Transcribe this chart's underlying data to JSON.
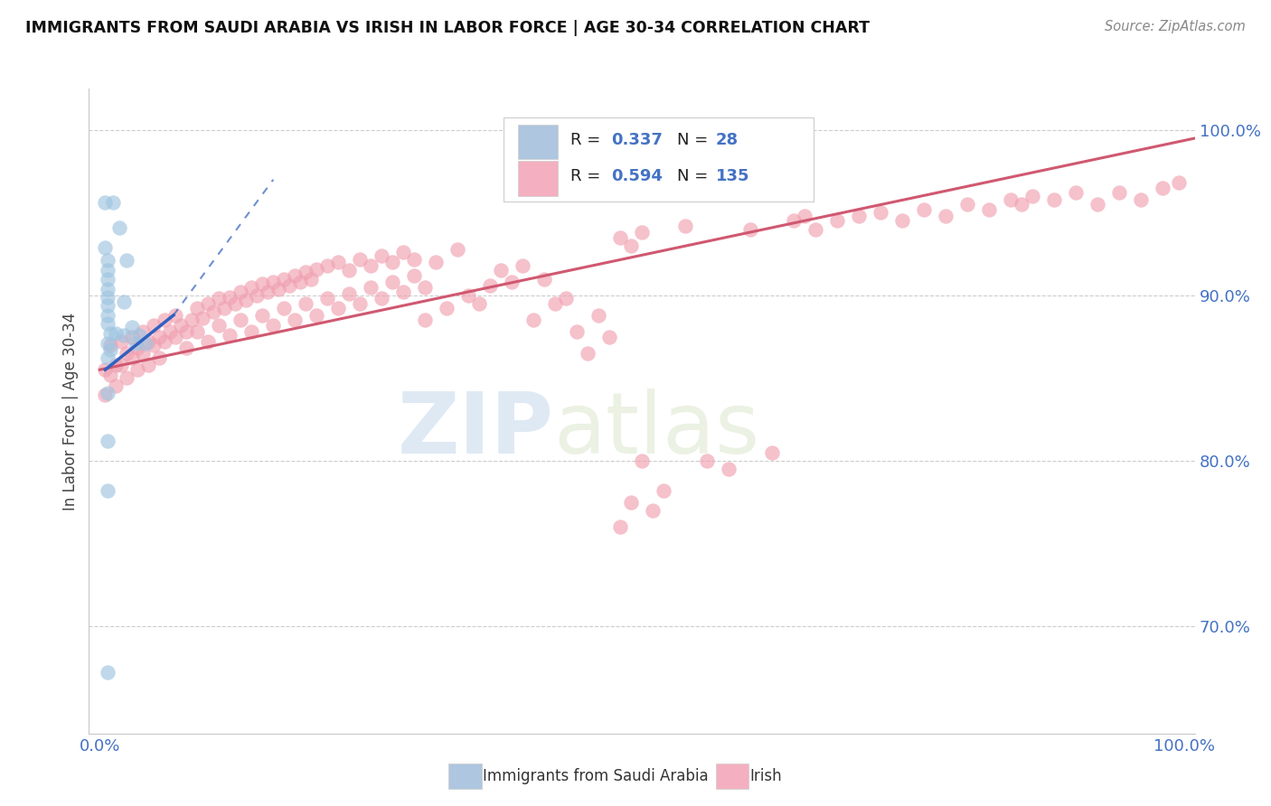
{
  "title": "IMMIGRANTS FROM SAUDI ARABIA VS IRISH IN LABOR FORCE | AGE 30-34 CORRELATION CHART",
  "source": "Source: ZipAtlas.com",
  "ylabel": "In Labor Force | Age 30-34",
  "xlim": [
    -0.01,
    1.01
  ],
  "ylim": [
    0.635,
    1.025
  ],
  "yticks": [
    0.7,
    0.8,
    0.9,
    1.0
  ],
  "ytick_labels": [
    "70.0%",
    "80.0%",
    "90.0%",
    "100.0%"
  ],
  "xtick_labels": [
    "0.0%",
    "100.0%"
  ],
  "saudi_color": "#9ec4e0",
  "irish_color": "#f0a0b0",
  "saudi_line_color": "#3060c0",
  "irish_line_color": "#d05870",
  "watermark_zip": "ZIP",
  "watermark_atlas": "atlas",
  "saudi_points": [
    [
      0.005,
      0.956
    ],
    [
      0.012,
      0.956
    ],
    [
      0.005,
      0.929
    ],
    [
      0.007,
      0.921
    ],
    [
      0.007,
      0.915
    ],
    [
      0.007,
      0.91
    ],
    [
      0.007,
      0.904
    ],
    [
      0.007,
      0.899
    ],
    [
      0.007,
      0.894
    ],
    [
      0.007,
      0.888
    ],
    [
      0.007,
      0.883
    ],
    [
      0.007,
      0.871
    ],
    [
      0.007,
      0.862
    ],
    [
      0.01,
      0.877
    ],
    [
      0.01,
      0.867
    ],
    [
      0.015,
      0.877
    ],
    [
      0.022,
      0.896
    ],
    [
      0.022,
      0.876
    ],
    [
      0.03,
      0.881
    ],
    [
      0.033,
      0.871
    ],
    [
      0.042,
      0.871
    ],
    [
      0.036,
      0.876
    ],
    [
      0.007,
      0.841
    ],
    [
      0.007,
      0.812
    ],
    [
      0.007,
      0.782
    ],
    [
      0.007,
      0.672
    ],
    [
      0.018,
      0.941
    ],
    [
      0.025,
      0.921
    ]
  ],
  "irish_points": [
    [
      0.005,
      0.855
    ],
    [
      0.01,
      0.87
    ],
    [
      0.015,
      0.858
    ],
    [
      0.02,
      0.872
    ],
    [
      0.025,
      0.865
    ],
    [
      0.03,
      0.875
    ],
    [
      0.035,
      0.868
    ],
    [
      0.04,
      0.878
    ],
    [
      0.045,
      0.872
    ],
    [
      0.05,
      0.882
    ],
    [
      0.055,
      0.875
    ],
    [
      0.06,
      0.885
    ],
    [
      0.065,
      0.878
    ],
    [
      0.07,
      0.888
    ],
    [
      0.075,
      0.882
    ],
    [
      0.08,
      0.878
    ],
    [
      0.085,
      0.885
    ],
    [
      0.09,
      0.892
    ],
    [
      0.095,
      0.886
    ],
    [
      0.1,
      0.895
    ],
    [
      0.105,
      0.89
    ],
    [
      0.11,
      0.898
    ],
    [
      0.115,
      0.892
    ],
    [
      0.12,
      0.899
    ],
    [
      0.125,
      0.895
    ],
    [
      0.13,
      0.902
    ],
    [
      0.135,
      0.897
    ],
    [
      0.14,
      0.905
    ],
    [
      0.145,
      0.9
    ],
    [
      0.15,
      0.907
    ],
    [
      0.155,
      0.902
    ],
    [
      0.16,
      0.908
    ],
    [
      0.165,
      0.904
    ],
    [
      0.17,
      0.91
    ],
    [
      0.175,
      0.906
    ],
    [
      0.18,
      0.912
    ],
    [
      0.185,
      0.908
    ],
    [
      0.19,
      0.914
    ],
    [
      0.195,
      0.91
    ],
    [
      0.2,
      0.916
    ],
    [
      0.21,
      0.918
    ],
    [
      0.22,
      0.92
    ],
    [
      0.23,
      0.915
    ],
    [
      0.24,
      0.922
    ],
    [
      0.25,
      0.918
    ],
    [
      0.26,
      0.924
    ],
    [
      0.27,
      0.92
    ],
    [
      0.28,
      0.926
    ],
    [
      0.29,
      0.922
    ],
    [
      0.3,
      0.885
    ],
    [
      0.31,
      0.92
    ],
    [
      0.32,
      0.892
    ],
    [
      0.33,
      0.928
    ],
    [
      0.34,
      0.9
    ],
    [
      0.35,
      0.895
    ],
    [
      0.36,
      0.906
    ],
    [
      0.37,
      0.915
    ],
    [
      0.38,
      0.908
    ],
    [
      0.39,
      0.918
    ],
    [
      0.4,
      0.885
    ],
    [
      0.41,
      0.91
    ],
    [
      0.42,
      0.895
    ],
    [
      0.43,
      0.898
    ],
    [
      0.44,
      0.878
    ],
    [
      0.45,
      0.865
    ],
    [
      0.46,
      0.888
    ],
    [
      0.47,
      0.875
    ],
    [
      0.48,
      0.76
    ],
    [
      0.49,
      0.775
    ],
    [
      0.5,
      0.8
    ],
    [
      0.51,
      0.77
    ],
    [
      0.52,
      0.782
    ],
    [
      0.48,
      0.935
    ],
    [
      0.49,
      0.93
    ],
    [
      0.5,
      0.938
    ],
    [
      0.54,
      0.942
    ],
    [
      0.56,
      0.8
    ],
    [
      0.58,
      0.795
    ],
    [
      0.6,
      0.94
    ],
    [
      0.62,
      0.805
    ],
    [
      0.64,
      0.945
    ],
    [
      0.65,
      0.948
    ],
    [
      0.66,
      0.94
    ],
    [
      0.68,
      0.945
    ],
    [
      0.7,
      0.948
    ],
    [
      0.72,
      0.95
    ],
    [
      0.74,
      0.945
    ],
    [
      0.76,
      0.952
    ],
    [
      0.78,
      0.948
    ],
    [
      0.8,
      0.955
    ],
    [
      0.82,
      0.952
    ],
    [
      0.84,
      0.958
    ],
    [
      0.85,
      0.955
    ],
    [
      0.86,
      0.96
    ],
    [
      0.88,
      0.958
    ],
    [
      0.9,
      0.962
    ],
    [
      0.92,
      0.955
    ],
    [
      0.94,
      0.962
    ],
    [
      0.96,
      0.958
    ],
    [
      0.98,
      0.965
    ],
    [
      0.995,
      0.968
    ],
    [
      0.005,
      0.84
    ],
    [
      0.01,
      0.852
    ],
    [
      0.015,
      0.845
    ],
    [
      0.02,
      0.858
    ],
    [
      0.025,
      0.85
    ],
    [
      0.03,
      0.862
    ],
    [
      0.035,
      0.855
    ],
    [
      0.04,
      0.865
    ],
    [
      0.045,
      0.858
    ],
    [
      0.05,
      0.87
    ],
    [
      0.055,
      0.862
    ],
    [
      0.06,
      0.872
    ],
    [
      0.07,
      0.875
    ],
    [
      0.08,
      0.868
    ],
    [
      0.09,
      0.878
    ],
    [
      0.1,
      0.872
    ],
    [
      0.11,
      0.882
    ],
    [
      0.12,
      0.876
    ],
    [
      0.13,
      0.885
    ],
    [
      0.14,
      0.878
    ],
    [
      0.15,
      0.888
    ],
    [
      0.16,
      0.882
    ],
    [
      0.17,
      0.892
    ],
    [
      0.18,
      0.885
    ],
    [
      0.19,
      0.895
    ],
    [
      0.2,
      0.888
    ],
    [
      0.21,
      0.898
    ],
    [
      0.22,
      0.892
    ],
    [
      0.23,
      0.901
    ],
    [
      0.24,
      0.895
    ],
    [
      0.25,
      0.905
    ],
    [
      0.26,
      0.898
    ],
    [
      0.27,
      0.908
    ],
    [
      0.28,
      0.902
    ],
    [
      0.29,
      0.912
    ],
    [
      0.3,
      0.905
    ]
  ]
}
